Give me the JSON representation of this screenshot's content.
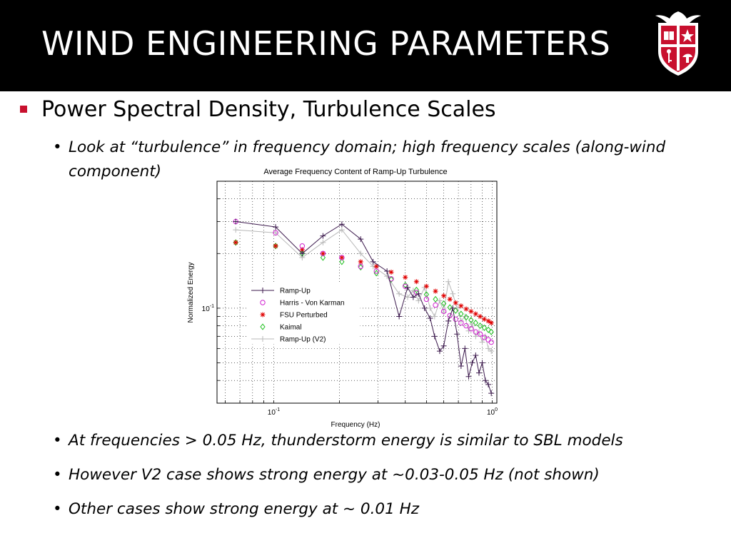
{
  "slide": {
    "title": "WIND ENGINEERING PARAMETERS",
    "bullet": "Power Spectral Density, Turbulence Scales",
    "sub_bullets_top": [
      {
        "line1": "Look at “turbulence” in frequency domain; high frequency scales (along-wind",
        "line2": "component)"
      }
    ],
    "sub_bullets_bottom": [
      "At frequencies > 0.05 Hz, thunderstorm energy is similar to SBL models",
      "However V2 case shows strong energy at ~0.03-0.05 Hz (not shown)",
      "Other cases show strong energy at ~ 0.01 Hz"
    ],
    "bullet_char": "•",
    "colors": {
      "header": "#000000",
      "accent": "#c8102e"
    },
    "logo_icon": "texas-tech-shield-icon"
  },
  "chart_data": {
    "type": "scatter",
    "title": "Average Frequency Content of Ramp-Up Turbulence",
    "xlabel": "Frequency (Hz)",
    "ylabel": "Normalized Energy",
    "xscale": "log",
    "yscale": "log",
    "xlim": [
      0.055,
      1.05
    ],
    "ylim": [
      0.03,
      0.5
    ],
    "xticks": [
      {
        "base": "10",
        "exp": "-1",
        "value": 0.1
      },
      {
        "base": "10",
        "exp": "0",
        "value": 1.0
      }
    ],
    "yticks": [
      {
        "base": "10",
        "exp": "-1",
        "value": 0.1
      }
    ],
    "grid": true,
    "legend_position": "left-center",
    "series": [
      {
        "name": "Ramp-Up",
        "marker": "plus",
        "color": "#3c1a4d",
        "line": true,
        "x": [
          0.067,
          0.102,
          0.135,
          0.168,
          0.205,
          0.25,
          0.285,
          0.33,
          0.375,
          0.41,
          0.435,
          0.46,
          0.49,
          0.52,
          0.545,
          0.575,
          0.6,
          0.63,
          0.66,
          0.69,
          0.72,
          0.75,
          0.78,
          0.81,
          0.84,
          0.87,
          0.9,
          0.93,
          0.96,
          0.99
        ],
        "y": [
          0.3,
          0.28,
          0.2,
          0.25,
          0.29,
          0.24,
          0.18,
          0.16,
          0.09,
          0.13,
          0.115,
          0.12,
          0.1,
          0.088,
          0.07,
          0.058,
          0.062,
          0.085,
          0.1,
          0.072,
          0.048,
          0.06,
          0.042,
          0.05,
          0.055,
          0.044,
          0.05,
          0.04,
          0.038,
          0.034
        ]
      },
      {
        "name": "Harris - Von Karman",
        "marker": "circle",
        "color": "#d020d0",
        "line": false,
        "x": [
          0.067,
          0.102,
          0.135,
          0.168,
          0.205,
          0.25,
          0.295,
          0.345,
          0.4,
          0.45,
          0.5,
          0.55,
          0.6,
          0.64,
          0.68,
          0.72,
          0.76,
          0.8,
          0.84,
          0.88,
          0.92,
          0.96,
          0.99
        ],
        "y": [
          0.3,
          0.26,
          0.22,
          0.2,
          0.19,
          0.17,
          0.16,
          0.145,
          0.132,
          0.122,
          0.112,
          0.104,
          0.096,
          0.091,
          0.087,
          0.083,
          0.08,
          0.077,
          0.074,
          0.072,
          0.069,
          0.067,
          0.065
        ]
      },
      {
        "name": "FSU Perturbed",
        "marker": "star",
        "color": "#e00000",
        "line": false,
        "x": [
          0.067,
          0.102,
          0.135,
          0.168,
          0.205,
          0.25,
          0.295,
          0.345,
          0.4,
          0.45,
          0.5,
          0.55,
          0.6,
          0.64,
          0.68,
          0.72,
          0.76,
          0.8,
          0.84,
          0.88,
          0.92,
          0.96,
          0.99
        ],
        "y": [
          0.23,
          0.22,
          0.21,
          0.2,
          0.19,
          0.18,
          0.17,
          0.158,
          0.148,
          0.14,
          0.132,
          0.124,
          0.117,
          0.112,
          0.107,
          0.103,
          0.099,
          0.096,
          0.093,
          0.09,
          0.087,
          0.085,
          0.083
        ]
      },
      {
        "name": "Kaimal",
        "marker": "diamond",
        "color": "#20c020",
        "line": false,
        "x": [
          0.067,
          0.102,
          0.135,
          0.168,
          0.205,
          0.25,
          0.295,
          0.345,
          0.4,
          0.45,
          0.5,
          0.55,
          0.6,
          0.64,
          0.68,
          0.72,
          0.76,
          0.8,
          0.84,
          0.88,
          0.92,
          0.96,
          0.99
        ],
        "y": [
          0.23,
          0.22,
          0.2,
          0.19,
          0.18,
          0.168,
          0.156,
          0.144,
          0.134,
          0.126,
          0.119,
          0.112,
          0.106,
          0.101,
          0.097,
          0.093,
          0.089,
          0.086,
          0.083,
          0.08,
          0.078,
          0.076,
          0.074
        ]
      },
      {
        "name": "Ramp-Up (V2)",
        "marker": "plus",
        "color": "#b8b8b8",
        "line": true,
        "x": [
          0.067,
          0.102,
          0.135,
          0.168,
          0.205,
          0.25,
          0.285,
          0.33,
          0.375,
          0.41,
          0.435,
          0.46,
          0.49,
          0.52,
          0.545,
          0.575,
          0.6,
          0.63,
          0.66,
          0.69,
          0.72,
          0.75,
          0.78,
          0.81,
          0.84,
          0.87,
          0.9,
          0.93,
          0.96,
          0.99
        ],
        "y": [
          0.27,
          0.26,
          0.19,
          0.23,
          0.27,
          0.2,
          0.17,
          0.15,
          0.12,
          0.115,
          0.125,
          0.11,
          0.13,
          0.1,
          0.09,
          0.11,
          0.095,
          0.14,
          0.12,
          0.1,
          0.085,
          0.09,
          0.075,
          0.082,
          0.07,
          0.074,
          0.065,
          0.07,
          0.06,
          0.058
        ]
      }
    ]
  }
}
